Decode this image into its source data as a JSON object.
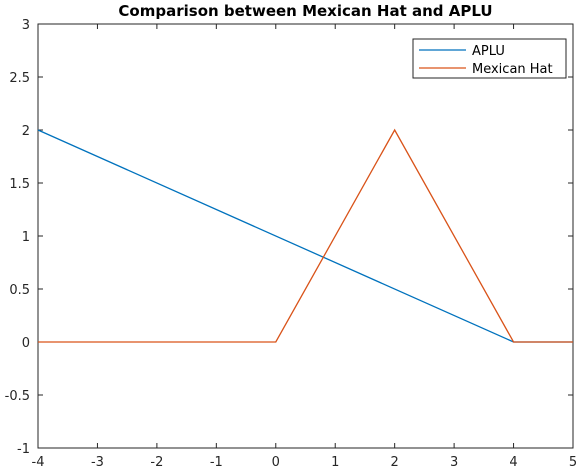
{
  "chart_data": {
    "type": "line",
    "title": "Comparison between Mexican Hat and APLU",
    "xlabel": "",
    "ylabel": "",
    "xlim": [
      -4,
      5
    ],
    "ylim": [
      -1,
      3
    ],
    "xticks": [
      -4,
      -3,
      -2,
      -1,
      0,
      1,
      2,
      3,
      4,
      5
    ],
    "yticks": [
      -1,
      -0.5,
      0,
      0.5,
      1,
      1.5,
      2,
      2.5,
      3
    ],
    "grid": false,
    "legend_position": "top-right",
    "series": [
      {
        "name": "APLU",
        "color": "#0072BD",
        "x": [
          -4,
          4,
          5
        ],
        "y": [
          2,
          0,
          0
        ]
      },
      {
        "name": "Mexican Hat",
        "color": "#D95319",
        "x": [
          -4,
          0,
          2,
          4,
          5
        ],
        "y": [
          0,
          0,
          2,
          0,
          0
        ]
      }
    ]
  }
}
